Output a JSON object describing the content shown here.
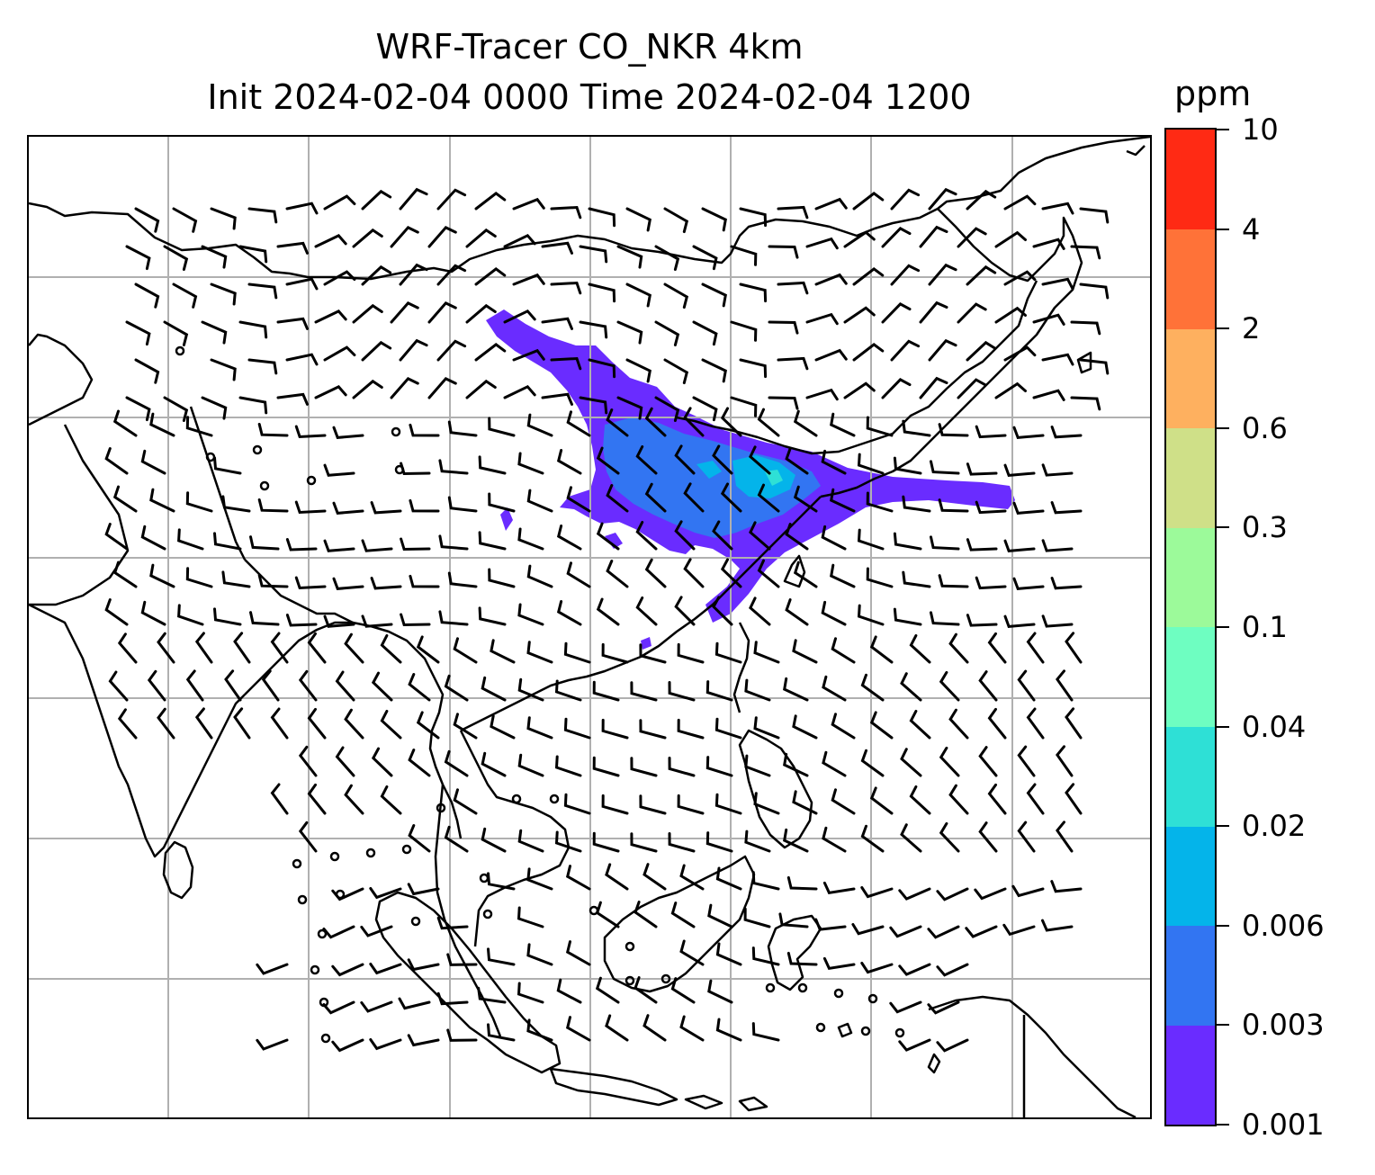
{
  "title": "WRF-Tracer CO_NKR 4km",
  "subtitle": "Init 2024-02-04 0000 Time 2024-02-04 1200",
  "colorbar": {
    "unit": "ppm",
    "levels": [
      "0.001",
      "0.003",
      "0.006",
      "0.02",
      "0.04",
      "0.1",
      "0.3",
      "0.6",
      "2",
      "4",
      "10"
    ],
    "colors": [
      "#6a2cff",
      "#3275f2",
      "#04b4ea",
      "#2ee0d6",
      "#6efec1",
      "#9cfa9a",
      "#cfe088",
      "#feb05f",
      "#ff7238",
      "#ff2a14"
    ]
  },
  "map": {
    "gridlines": true,
    "coastline_color": "#000000",
    "grid_color": "#b0b0b0",
    "wind_barb_color": "#000000"
  },
  "chart_data": {
    "type": "heatmap",
    "field": "CO tracer concentration",
    "unit": "ppm",
    "levels": [
      0.001,
      0.003,
      0.006,
      0.02,
      0.04,
      0.1,
      0.3,
      0.6,
      2,
      4,
      10
    ],
    "plume": {
      "max_level_reached": "0.006-0.02",
      "core_level": "0.003-0.006",
      "edge_level": "0.001-0.003"
    },
    "overlay": "wind barbs"
  }
}
